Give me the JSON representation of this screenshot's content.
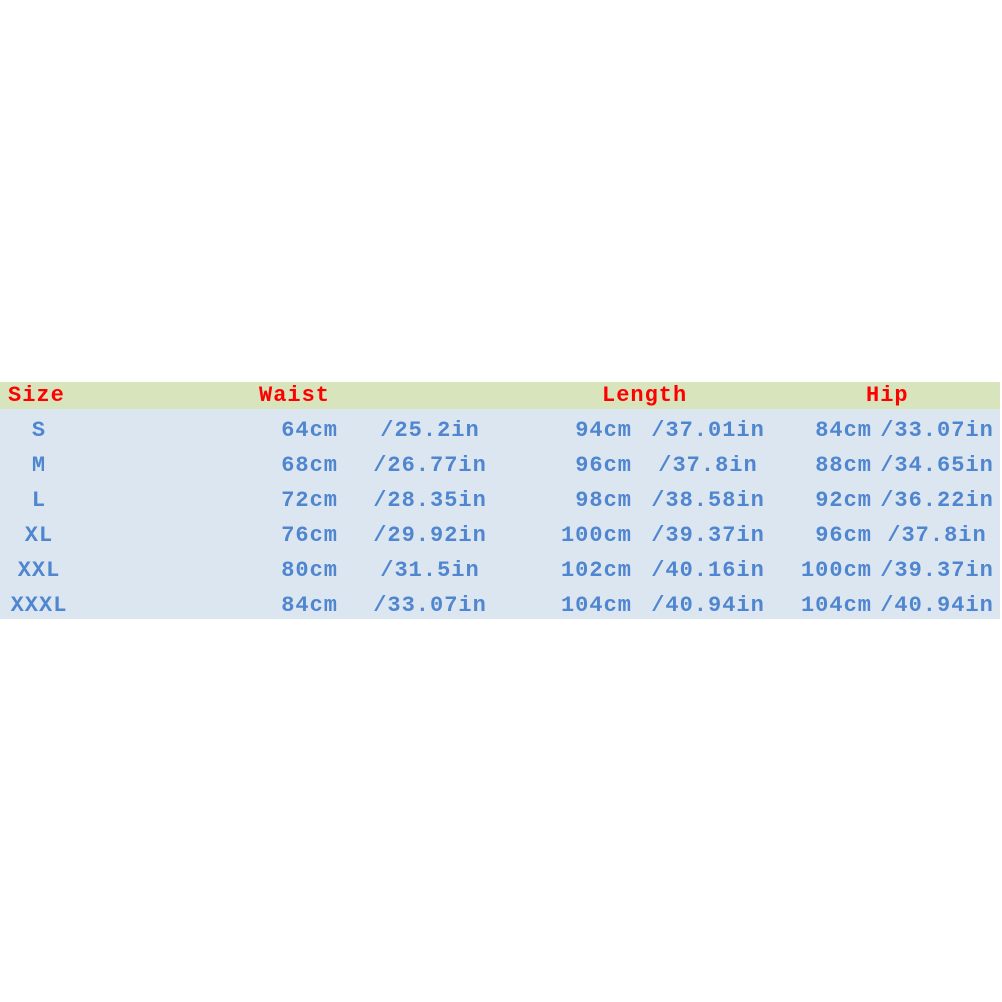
{
  "headers": {
    "size": "Size",
    "waist": "Waist",
    "length": "Length",
    "hip": "Hip"
  },
  "rows": [
    {
      "size": "S",
      "waist_cm": "64cm",
      "waist_in": "/25.2in",
      "length_cm": "94cm",
      "length_in": "/37.01in",
      "hip_cm": "84cm",
      "hip_in": "/33.07in"
    },
    {
      "size": "M",
      "waist_cm": "68cm",
      "waist_in": "/26.77in",
      "length_cm": "96cm",
      "length_in": "/37.8in",
      "hip_cm": "88cm",
      "hip_in": "/34.65in"
    },
    {
      "size": "L",
      "waist_cm": "72cm",
      "waist_in": "/28.35in",
      "length_cm": "98cm",
      "length_in": "/38.58in",
      "hip_cm": "92cm",
      "hip_in": "/36.22in"
    },
    {
      "size": "XL",
      "waist_cm": "76cm",
      "waist_in": "/29.92in",
      "length_cm": "100cm",
      "length_in": "/39.37in",
      "hip_cm": "96cm",
      "hip_in": "/37.8in"
    },
    {
      "size": "XXL",
      "waist_cm": "80cm",
      "waist_in": "/31.5in",
      "length_cm": "102cm",
      "length_in": "/40.16in",
      "hip_cm": "100cm",
      "hip_in": "/39.37in"
    },
    {
      "size": "XXXL",
      "waist_cm": "84cm",
      "waist_in": "/33.07in",
      "length_cm": "104cm",
      "length_in": "/40.94in",
      "hip_cm": "104cm",
      "hip_in": "/40.94in"
    }
  ],
  "colors": {
    "header_bg": "#d8e4bc",
    "body_bg": "#dce6f1",
    "header_text": "#ff0000",
    "body_text": "#4f86cf"
  }
}
